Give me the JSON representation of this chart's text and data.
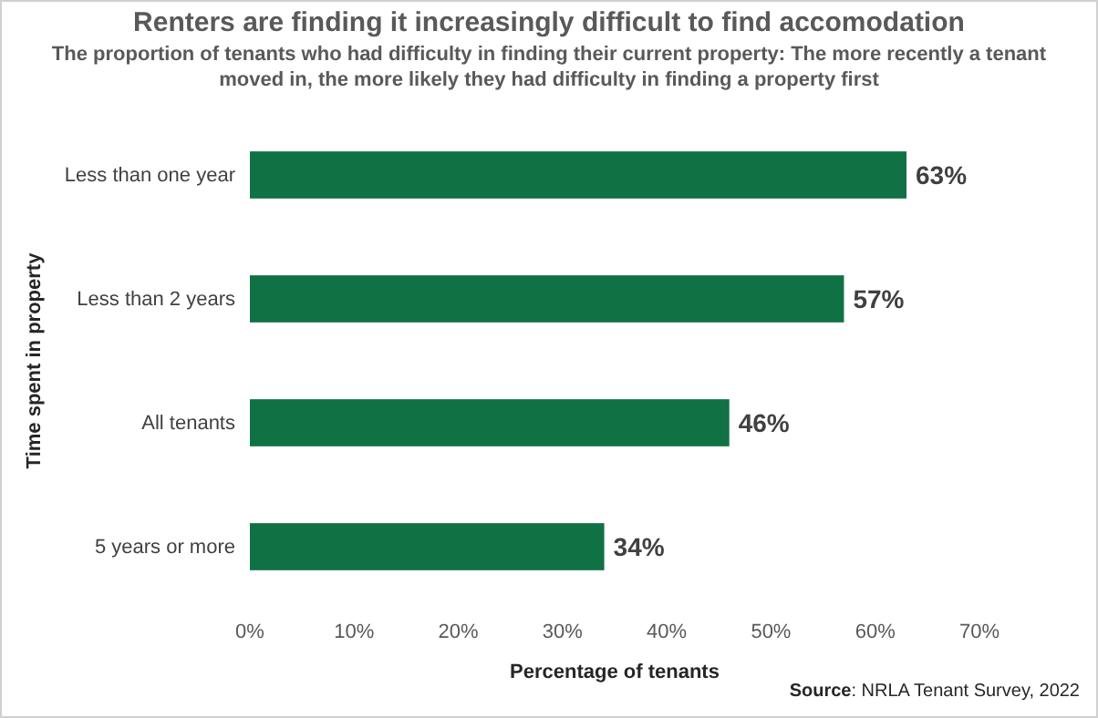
{
  "chart_data": {
    "type": "bar",
    "orientation": "horizontal",
    "title": "Renters are finding it increasingly difficult to find accomodation",
    "subtitle": "The proportion of tenants who had difficulty in finding their current property: The more recently a tenant moved in, the more likely they had difficulty in finding a property first",
    "xlabel": "Percentage of tenants",
    "ylabel": "Time spent in property",
    "categories": [
      "Less than one year",
      "Less than 2 years",
      "All tenants",
      "5 years or more"
    ],
    "values": [
      63,
      57,
      46,
      34
    ],
    "value_labels": [
      "63%",
      "57%",
      "46%",
      "34%"
    ],
    "color": "#107145",
    "xlim": [
      0,
      70
    ],
    "xticks": [
      {
        "value": 0,
        "label": "0%"
      },
      {
        "value": 10,
        "label": "10%"
      },
      {
        "value": 20,
        "label": "20%"
      },
      {
        "value": 30,
        "label": "30%"
      },
      {
        "value": 40,
        "label": "40%"
      },
      {
        "value": 50,
        "label": "50%"
      },
      {
        "value": 60,
        "label": "60%"
      },
      {
        "value": 70,
        "label": "70%"
      }
    ],
    "grid": false,
    "annotations": [
      "Source: NRLA Tenant Survey, 2022"
    ]
  }
}
